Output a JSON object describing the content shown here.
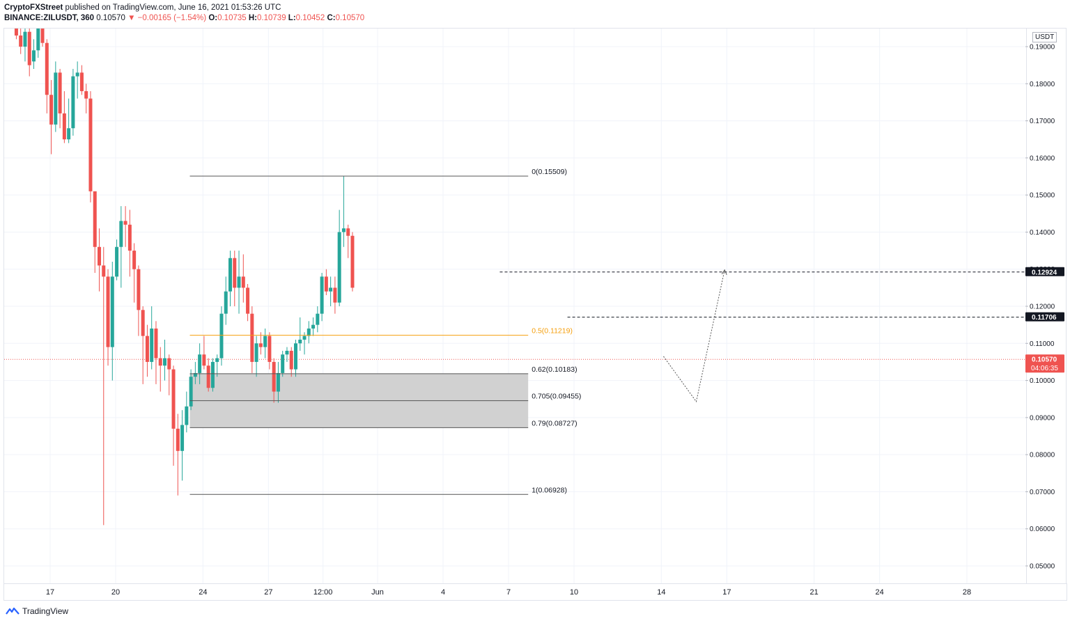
{
  "header": {
    "line1_author": "CryptoFXStreet",
    "line1_rest": " published on TradingView.com, June 16, 2021 01:53:26 UTC",
    "symbol": "BINANCE:ZILUSDT, 360",
    "last": "0.10570",
    "change": "▼ −0.00165 (−1.54%)",
    "o_label": "O:",
    "o": "0.10735",
    "h_label": "H:",
    "h": "0.10739",
    "l_label": "L:",
    "l": "0.10452",
    "c_label": "C:",
    "c": "0.10570"
  },
  "axis": {
    "unit": "USDT",
    "price_label": "0.10570",
    "countdown": "04:06:35",
    "level_label_1": "0.12924",
    "level_label_2": "0.11706"
  },
  "brand": {
    "name": "TradingView"
  },
  "colors": {
    "up": "#26a69a",
    "down": "#ef5350",
    "fib_mid": "#f59e0b",
    "zone": "#d1d1d1"
  },
  "chart_data": {
    "type": "candlestick",
    "ylim": [
      0.043,
      0.192
    ],
    "xlim": [
      15.35,
      31.0
    ],
    "x_unit": "days (May 2021 continuing into June; 32 = Jun 1)",
    "y_ticks": [
      "0.19000",
      "0.18000",
      "0.17000",
      "0.16000",
      "0.15000",
      "0.14000",
      "0.13000",
      "0.12000",
      "0.11000",
      "0.10000",
      "0.09000",
      "0.08000",
      "0.07000",
      "0.06000",
      "0.05000"
    ],
    "y_tick_values": [
      0.19,
      0.18,
      0.17,
      0.16,
      0.15,
      0.14,
      0.13,
      0.12,
      0.11,
      0.1,
      0.09,
      0.08,
      0.07,
      0.06,
      0.05
    ],
    "x_ticks": [
      {
        "label": "17",
        "x": 17
      },
      {
        "label": "20",
        "x": 20
      },
      {
        "label": "24",
        "x": 24
      },
      {
        "label": "27",
        "x": 27
      },
      {
        "label": "12:00",
        "x": 29.5
      },
      {
        "label": "Jun",
        "x": 32
      },
      {
        "label": "4",
        "x": 35
      },
      {
        "label": "7",
        "x": 38
      },
      {
        "label": "10",
        "x": 41
      },
      {
        "label": "14",
        "x": 45
      },
      {
        "label": "17",
        "x": 48
      },
      {
        "label": "21",
        "x": 52
      },
      {
        "label": "24",
        "x": 55
      },
      {
        "label": "28",
        "x": 59
      }
    ],
    "candles": [
      [
        15.45,
        0.198,
        0.199,
        0.192,
        0.193
      ],
      [
        15.65,
        0.193,
        0.196,
        0.188,
        0.19
      ],
      [
        15.85,
        0.19,
        0.196,
        0.186,
        0.194
      ],
      [
        16.05,
        0.194,
        0.196,
        0.182,
        0.185
      ],
      [
        16.25,
        0.186,
        0.192,
        0.184,
        0.189
      ],
      [
        16.45,
        0.189,
        0.197,
        0.187,
        0.195
      ],
      [
        16.65,
        0.195,
        0.199,
        0.19,
        0.191
      ],
      [
        16.85,
        0.191,
        0.192,
        0.172,
        0.177
      ],
      [
        17.05,
        0.177,
        0.181,
        0.161,
        0.169
      ],
      [
        17.25,
        0.169,
        0.186,
        0.167,
        0.183
      ],
      [
        17.45,
        0.183,
        0.184,
        0.168,
        0.172
      ],
      [
        17.65,
        0.172,
        0.178,
        0.164,
        0.165
      ],
      [
        17.85,
        0.165,
        0.176,
        0.164,
        0.168
      ],
      [
        18.05,
        0.168,
        0.184,
        0.166,
        0.182
      ],
      [
        18.25,
        0.182,
        0.186,
        0.176,
        0.183
      ],
      [
        18.45,
        0.183,
        0.185,
        0.177,
        0.178
      ],
      [
        18.65,
        0.178,
        0.18,
        0.172,
        0.176
      ],
      [
        18.85,
        0.176,
        0.178,
        0.148,
        0.151
      ],
      [
        19.05,
        0.151,
        0.15,
        0.129,
        0.136
      ],
      [
        19.25,
        0.136,
        0.141,
        0.124,
        0.131
      ],
      [
        19.45,
        0.131,
        0.136,
        0.061,
        0.128
      ],
      [
        19.65,
        0.128,
        0.13,
        0.104,
        0.109
      ],
      [
        19.85,
        0.109,
        0.132,
        0.1,
        0.128
      ],
      [
        20.05,
        0.128,
        0.138,
        0.127,
        0.136
      ],
      [
        20.25,
        0.136,
        0.147,
        0.125,
        0.143
      ],
      [
        20.45,
        0.143,
        0.147,
        0.136,
        0.142
      ],
      [
        20.65,
        0.142,
        0.146,
        0.128,
        0.135
      ],
      [
        20.85,
        0.135,
        0.137,
        0.121,
        0.13
      ],
      [
        21.05,
        0.13,
        0.131,
        0.112,
        0.119
      ],
      [
        21.25,
        0.119,
        0.12,
        0.099,
        0.112
      ],
      [
        21.45,
        0.112,
        0.115,
        0.101,
        0.105
      ],
      [
        21.65,
        0.105,
        0.12,
        0.103,
        0.114
      ],
      [
        21.85,
        0.114,
        0.116,
        0.099,
        0.106
      ],
      [
        22.05,
        0.106,
        0.109,
        0.097,
        0.104
      ],
      [
        22.25,
        0.104,
        0.111,
        0.1,
        0.106
      ],
      [
        22.45,
        0.106,
        0.107,
        0.096,
        0.103
      ],
      [
        22.65,
        0.103,
        0.104,
        0.077,
        0.087
      ],
      [
        22.85,
        0.087,
        0.091,
        0.069,
        0.081
      ],
      [
        23.05,
        0.081,
        0.092,
        0.073,
        0.088
      ],
      [
        23.25,
        0.088,
        0.097,
        0.086,
        0.093
      ],
      [
        23.45,
        0.093,
        0.103,
        0.092,
        0.101
      ],
      [
        23.65,
        0.101,
        0.105,
        0.099,
        0.102
      ],
      [
        23.85,
        0.102,
        0.11,
        0.099,
        0.107
      ],
      [
        24.05,
        0.107,
        0.112,
        0.103,
        0.104
      ],
      [
        24.25,
        0.104,
        0.106,
        0.097,
        0.098
      ],
      [
        24.45,
        0.098,
        0.106,
        0.097,
        0.105
      ],
      [
        24.65,
        0.105,
        0.107,
        0.101,
        0.106
      ],
      [
        24.85,
        0.106,
        0.12,
        0.104,
        0.118
      ],
      [
        25.05,
        0.118,
        0.128,
        0.115,
        0.124
      ],
      [
        25.25,
        0.124,
        0.135,
        0.12,
        0.133
      ],
      [
        25.45,
        0.133,
        0.135,
        0.12,
        0.125
      ],
      [
        25.65,
        0.125,
        0.135,
        0.118,
        0.128
      ],
      [
        25.85,
        0.128,
        0.134,
        0.121,
        0.125
      ],
      [
        26.05,
        0.125,
        0.126,
        0.116,
        0.118
      ],
      [
        26.25,
        0.118,
        0.12,
        0.102,
        0.105
      ],
      [
        26.45,
        0.105,
        0.112,
        0.101,
        0.11
      ],
      [
        26.65,
        0.11,
        0.113,
        0.107,
        0.109
      ],
      [
        26.85,
        0.109,
        0.114,
        0.106,
        0.112
      ],
      [
        27.05,
        0.112,
        0.113,
        0.103,
        0.105
      ],
      [
        27.25,
        0.105,
        0.106,
        0.094,
        0.097
      ],
      [
        27.45,
        0.097,
        0.105,
        0.094,
        0.102
      ],
      [
        27.65,
        0.102,
        0.108,
        0.101,
        0.107
      ],
      [
        27.85,
        0.107,
        0.109,
        0.105,
        0.108
      ],
      [
        28.05,
        0.108,
        0.109,
        0.101,
        0.103
      ],
      [
        28.25,
        0.103,
        0.111,
        0.101,
        0.11
      ],
      [
        28.45,
        0.11,
        0.117,
        0.108,
        0.111
      ],
      [
        28.65,
        0.111,
        0.113,
        0.107,
        0.112
      ],
      [
        28.85,
        0.112,
        0.116,
        0.11,
        0.114
      ],
      [
        29.05,
        0.114,
        0.117,
        0.112,
        0.115
      ],
      [
        29.25,
        0.115,
        0.12,
        0.113,
        0.118
      ],
      [
        29.45,
        0.118,
        0.129,
        0.116,
        0.128
      ],
      [
        29.65,
        0.128,
        0.13,
        0.123,
        0.124
      ],
      [
        29.85,
        0.124,
        0.128,
        0.12,
        0.125
      ],
      [
        30.05,
        0.125,
        0.128,
        0.118,
        0.121
      ],
      [
        30.25,
        0.121,
        0.146,
        0.12,
        0.14
      ],
      [
        30.45,
        0.14,
        0.155,
        0.136,
        0.141
      ],
      [
        30.65,
        0.141,
        0.142,
        0.133,
        0.139
      ],
      [
        30.85,
        0.139,
        0.14,
        0.124,
        0.125
      ]
    ],
    "fib_levels": [
      {
        "label": "0(0.15509)",
        "value": 0.15509
      },
      {
        "label": "0.5(0.11219)",
        "value": 0.11219
      },
      {
        "label": "0.62(0.10183)",
        "value": 0.10183
      },
      {
        "label": "0.705(0.09455)",
        "value": 0.09455
      },
      {
        "label": "0.79(0.08727)",
        "value": 0.08727
      },
      {
        "label": "1(0.06928)",
        "value": 0.06928
      }
    ],
    "fib_x_range": [
      23.4,
      38.9
    ],
    "resistance_levels": [
      {
        "value": 0.12924,
        "from": 37.6
      },
      {
        "value": 0.11706,
        "from": 40.7
      }
    ],
    "projection_path": [
      [
        45.1,
        0.1065
      ],
      [
        46.6,
        0.0943
      ],
      [
        47.9,
        0.1298
      ]
    ],
    "current_price": 0.1057
  }
}
